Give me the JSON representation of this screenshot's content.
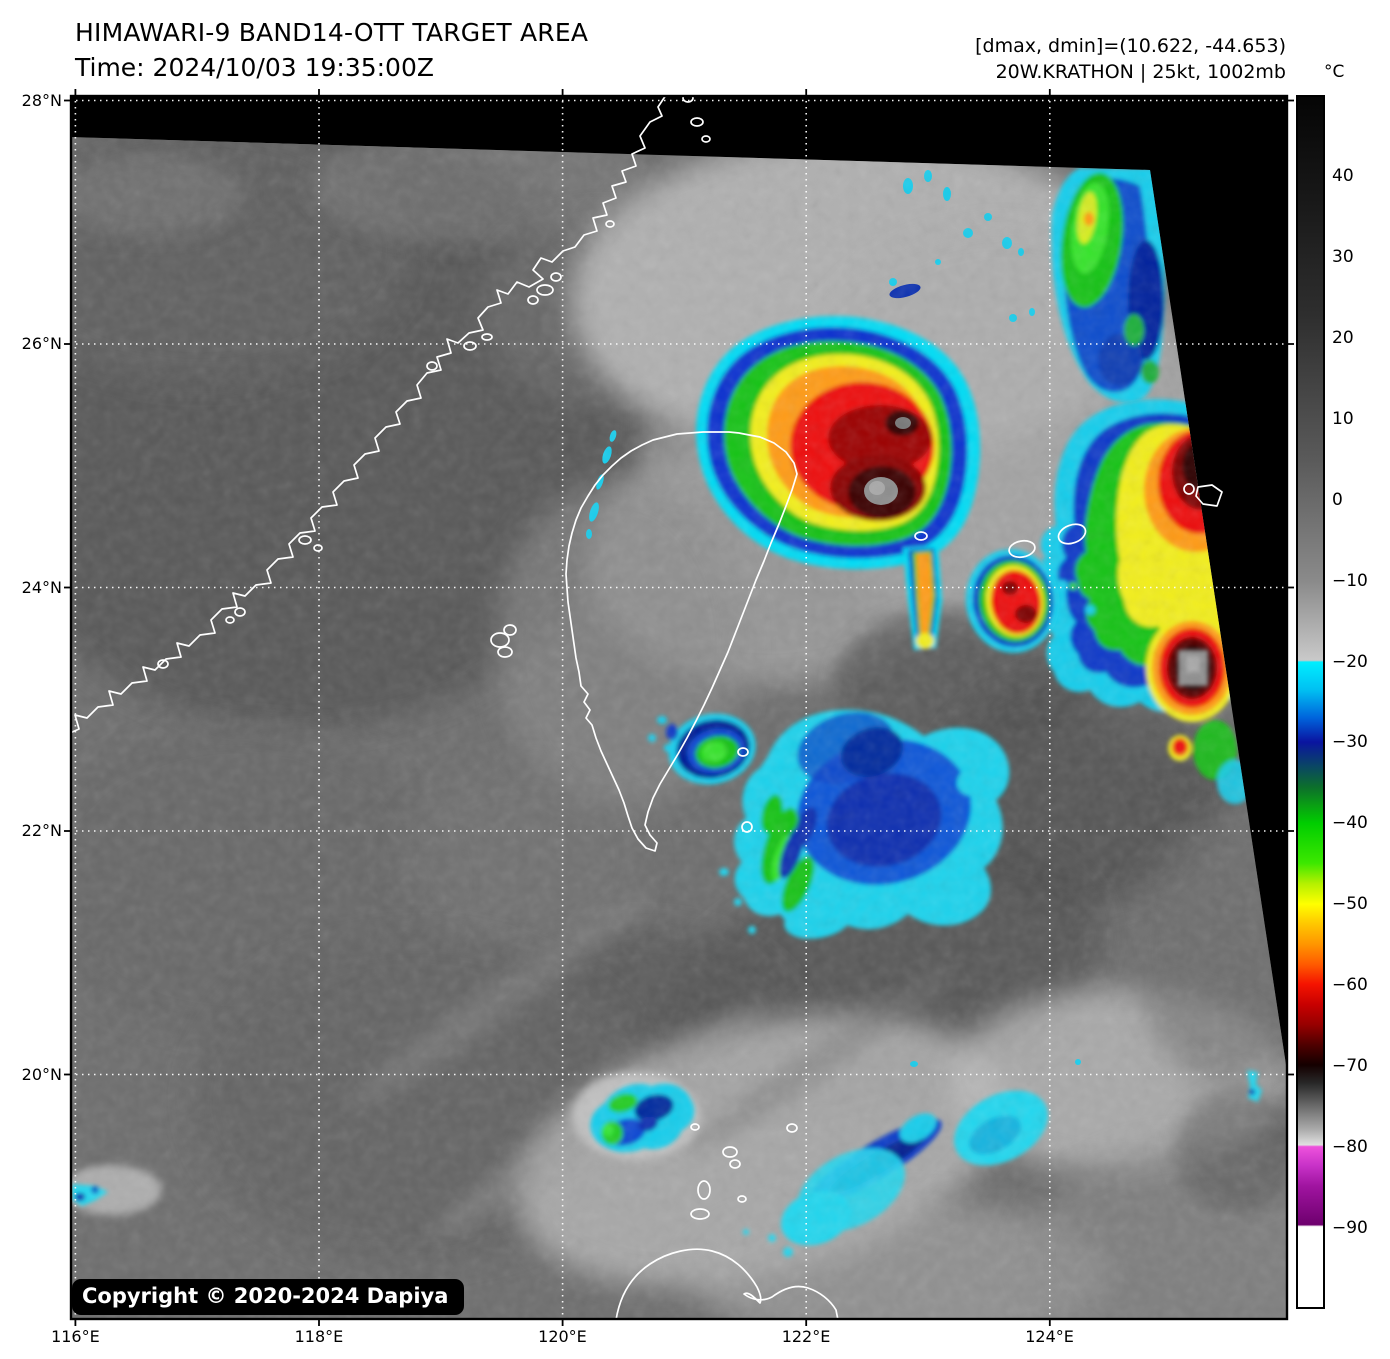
{
  "header": {
    "title": "HIMAWARI-9 BAND14-OTT TARGET AREA",
    "time": "Time: 2024/10/03 19:35:00Z",
    "dmax_dmin": "[dmax, dmin]=(10.622, -44.653)",
    "storm_info": "20W.KRATHON | 25kt, 1002mb"
  },
  "colorbar": {
    "unit": "°C",
    "ticks": [
      {
        "label": "40",
        "value": 40
      },
      {
        "label": "30",
        "value": 30
      },
      {
        "label": "20",
        "value": 20
      },
      {
        "label": "10",
        "value": 10
      },
      {
        "label": "0",
        "value": 0
      },
      {
        "label": "−10",
        "value": -10
      },
      {
        "label": "−20",
        "value": -20
      },
      {
        "label": "−30",
        "value": -30
      },
      {
        "label": "−40",
        "value": -40
      },
      {
        "label": "−50",
        "value": -50
      },
      {
        "label": "−60",
        "value": -60
      },
      {
        "label": "−70",
        "value": -70
      },
      {
        "label": "−80",
        "value": -80
      },
      {
        "label": "−90",
        "value": -90
      }
    ],
    "scale_top_temp": 50,
    "scale_bottom_temp": -100,
    "palette_stops": [
      {
        "temp": 50,
        "color": "#050505"
      },
      {
        "temp": -20,
        "color": "#c9c9c9"
      },
      {
        "temp": -20,
        "color": "#00eeff"
      },
      {
        "temp": -30,
        "color": "#0a14a0"
      },
      {
        "temp": -40,
        "color": "#00cd00"
      },
      {
        "temp": -50,
        "color": "#ffff00"
      },
      {
        "temp": -60,
        "color": "#f51400"
      },
      {
        "temp": -70,
        "color": "#140000"
      },
      {
        "temp": -80,
        "color": "#e0e0e0"
      },
      {
        "temp": -80,
        "color": "#ee52dc"
      },
      {
        "temp": -90,
        "color": "#6e006e"
      },
      {
        "temp": -90,
        "color": "#ffffff"
      },
      {
        "temp": -100,
        "color": "#ffffff"
      }
    ]
  },
  "axes": {
    "lat_ticks": [
      {
        "label": "28°N",
        "deg": 28
      },
      {
        "label": "26°N",
        "deg": 26
      },
      {
        "label": "24°N",
        "deg": 24
      },
      {
        "label": "22°N",
        "deg": 22
      },
      {
        "label": "20°N",
        "deg": 20
      }
    ],
    "lon_ticks": [
      {
        "label": "116°E",
        "deg": 116
      },
      {
        "label": "118°E",
        "deg": 118
      },
      {
        "label": "120°E",
        "deg": 120
      },
      {
        "label": "122°E",
        "deg": 122
      },
      {
        "label": "124°E",
        "deg": 124
      }
    ]
  },
  "map": {
    "copyright": "Copyright © 2020-2024 Dapiya"
  }
}
